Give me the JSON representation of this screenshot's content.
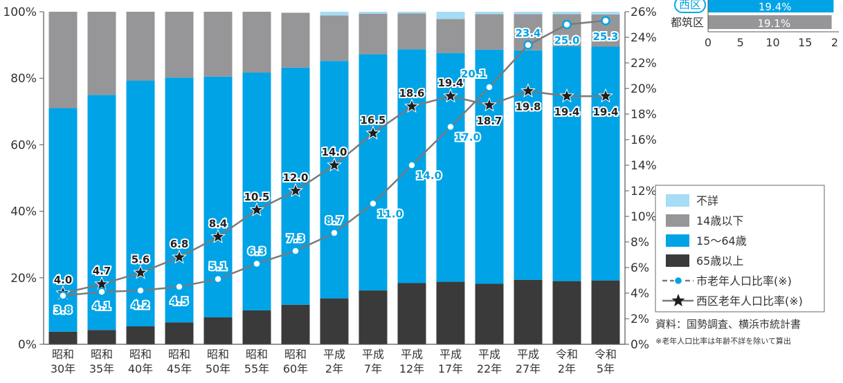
{
  "chart_data": {
    "type": "bar",
    "stacked": true,
    "categories": [
      {
        "era": "昭和",
        "year": "30年"
      },
      {
        "era": "昭和",
        "year": "35年"
      },
      {
        "era": "昭和",
        "year": "40年"
      },
      {
        "era": "昭和",
        "year": "45年"
      },
      {
        "era": "昭和",
        "year": "50年"
      },
      {
        "era": "昭和",
        "year": "55年"
      },
      {
        "era": "昭和",
        "year": "60年"
      },
      {
        "era": "平成",
        "year": "2年"
      },
      {
        "era": "平成",
        "year": "7年"
      },
      {
        "era": "平成",
        "year": "12年"
      },
      {
        "era": "平成",
        "year": "17年"
      },
      {
        "era": "平成",
        "year": "22年"
      },
      {
        "era": "平成",
        "year": "27年"
      },
      {
        "era": "令和",
        "year": "2年"
      },
      {
        "era": "令和",
        "year": "5年"
      }
    ],
    "series": [
      {
        "name": "65歳以上",
        "color": "#3a3a3a",
        "values": [
          3.8,
          4.3,
          5.4,
          6.6,
          8.1,
          10.2,
          11.9,
          13.8,
          16.2,
          18.4,
          18.8,
          18.2,
          19.4,
          19.0,
          19.2
        ]
      },
      {
        "name": "15〜64歳",
        "color": "#00a3e6",
        "values": [
          67.2,
          70.7,
          73.9,
          73.6,
          72.4,
          71.5,
          71.3,
          71.4,
          71.0,
          70.3,
          68.8,
          70.4,
          69.0,
          70.6,
          70.3
        ]
      },
      {
        "name": "14歳以下",
        "color": "#969698",
        "values": [
          29.0,
          25.0,
          20.7,
          19.8,
          19.5,
          18.3,
          16.5,
          13.7,
          12.2,
          10.8,
          10.2,
          10.7,
          10.9,
          9.7,
          9.7
        ]
      },
      {
        "name": "不詳",
        "color": "#a6dcf5",
        "values": [
          0,
          0,
          0,
          0,
          0,
          0,
          0,
          1.1,
          0.6,
          0.5,
          2.2,
          0.7,
          0.7,
          0.7,
          0.8
        ]
      }
    ],
    "lines": [
      {
        "name": "市老年人口比率(※)",
        "color": "#00a3e6",
        "marker": "circle",
        "values": [
          3.8,
          4.1,
          4.2,
          4.5,
          5.1,
          6.3,
          7.3,
          8.7,
          11.0,
          14.0,
          17.0,
          20.1,
          23.4,
          25.0,
          25.3
        ],
        "labels": [
          "3.8",
          "4.1",
          "4.2",
          "4.5",
          "5.1",
          "6.3",
          "7.3",
          "8.7",
          "11.0",
          "14.0",
          "17.0",
          "20.1",
          "23.4",
          "25.0",
          "25.3"
        ]
      },
      {
        "name": "西区老年人口比率(※)",
        "color": "#1e1e1e",
        "marker": "star",
        "values": [
          4.0,
          4.7,
          5.6,
          6.8,
          8.4,
          10.5,
          12.0,
          14.0,
          16.5,
          18.6,
          19.4,
          18.7,
          19.8,
          19.4,
          19.4
        ],
        "labels": [
          "4.0",
          "4.7",
          "5.6",
          "6.8",
          "8.4",
          "10.5",
          "12.0",
          "14.0",
          "16.5",
          "18.6",
          "19.4",
          "18.7",
          "19.8",
          "19.4",
          "19.4"
        ]
      }
    ],
    "left_axis": {
      "ylim": [
        0,
        100
      ],
      "ticks": [
        "0%",
        "20%",
        "40%",
        "60%",
        "80%",
        "100%"
      ]
    },
    "right_axis": {
      "ylim": [
        0,
        26
      ],
      "ticks": [
        "0%",
        "2%",
        "4%",
        "6%",
        "8%",
        "10%",
        "12%",
        "14%",
        "16%",
        "18%",
        "20%",
        "22%",
        "24%",
        "26%"
      ]
    },
    "legend": {
      "position": "right",
      "items": [
        {
          "label": "不詳",
          "kind": "box",
          "color": "#a6dcf5"
        },
        {
          "label": "14歳以下",
          "kind": "box",
          "color": "#969698"
        },
        {
          "label": "15〜64歳",
          "kind": "box",
          "color": "#00a3e6"
        },
        {
          "label": "65歳以上",
          "kind": "box",
          "color": "#3a3a3a"
        },
        {
          "label": "市老年人口比率(※)",
          "kind": "line-circle",
          "color": "#00a3e6"
        },
        {
          "label": "西区老年人口比率(※)",
          "kind": "line-star",
          "color": "#1e1e1e"
        }
      ]
    },
    "source": "資料：国勢調査、横浜市統計書",
    "note": "※老年人口比率は年齢不詳を除いて算出"
  },
  "inset_chart": {
    "type": "bar",
    "orientation": "horizontal",
    "rows": [
      {
        "label": "西区",
        "value": 19.4,
        "value_label": "19.4%",
        "color": "#00a3e6",
        "highlight": true
      },
      {
        "label": "都筑区",
        "value": 19.1,
        "value_label": "19.1%",
        "color": "#969698",
        "highlight": false
      }
    ],
    "x_ticks": [
      "0",
      "5",
      "10",
      "15",
      "2"
    ]
  }
}
